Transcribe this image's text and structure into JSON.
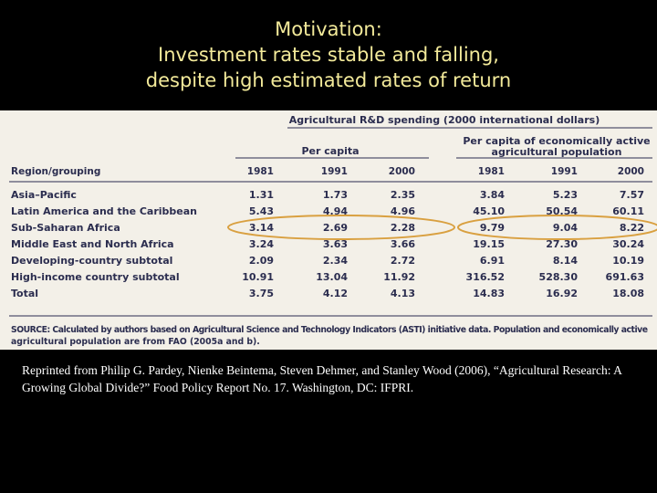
{
  "title": [
    "Motivation:",
    "Investment rates stable and falling,",
    "despite high estimated rates of return"
  ],
  "table": {
    "caption": "Agricultural R&D spending (2000 international dollars)",
    "group_headers": [
      "Per capita",
      "Per capita of economically active",
      "agricultural population"
    ],
    "columns": [
      "Region/grouping",
      "1981",
      "1991",
      "2000",
      "1981",
      "1991",
      "2000"
    ],
    "rows": [
      [
        "Asia–Pacific",
        "1.31",
        "1.73",
        "2.35",
        "3.84",
        "5.23",
        "7.57"
      ],
      [
        "Latin America and the Caribbean",
        "5.43",
        "4.94",
        "4.96",
        "45.10",
        "50.54",
        "60.11"
      ],
      [
        "Sub-Saharan Africa",
        "3.14",
        "2.69",
        "2.28",
        "9.79",
        "9.04",
        "8.22"
      ],
      [
        "Middle East and North Africa",
        "3.24",
        "3.63",
        "3.66",
        "19.15",
        "27.30",
        "30.24"
      ],
      [
        "Developing-country subtotal",
        "2.09",
        "2.34",
        "2.72",
        "6.91",
        "8.14",
        "10.19"
      ],
      [
        "High-income country subtotal",
        "10.91",
        "13.04",
        "11.92",
        "316.52",
        "528.30",
        "691.63"
      ],
      [
        "Total",
        "3.75",
        "4.12",
        "4.13",
        "14.83",
        "16.92",
        "18.08"
      ]
    ],
    "source": [
      "SOURCE: Calculated by authors based on Agricultural Science and Technology Indicators (ASTI) initiative data. Population and economically active",
      "agricultural population are from FAO (2005a and b)."
    ]
  },
  "reference": "Reprinted from Philip G. Pardey, Nienke Beintema, Steven Dehmer, and Stanley Wood (2006), “Agricultural Research: A Growing Global Divide?” Food Policy Report No. 17. Washington, DC: IFPRI."
}
